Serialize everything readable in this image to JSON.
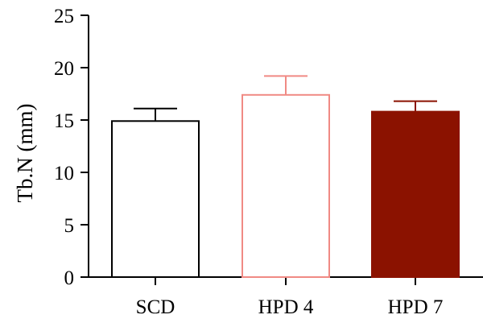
{
  "chart_data": {
    "type": "bar",
    "categories": [
      "SCD",
      "HPD 4",
      "HPD 7"
    ],
    "values": [
      14.9,
      17.4,
      15.8
    ],
    "errors": [
      1.2,
      1.8,
      1.0
    ],
    "ylabel": "Tb.N (mm)",
    "xlabel": "",
    "ylim": [
      0,
      25
    ],
    "yticks": [
      "0",
      "5",
      "10",
      "15",
      "20",
      "25"
    ],
    "bar_fill_colors": [
      "#ffffff",
      "#ffffff",
      "#8b1200"
    ],
    "bar_stroke_colors": [
      "#000000",
      "#f08a84",
      "#8b1200"
    ],
    "grid": false
  }
}
